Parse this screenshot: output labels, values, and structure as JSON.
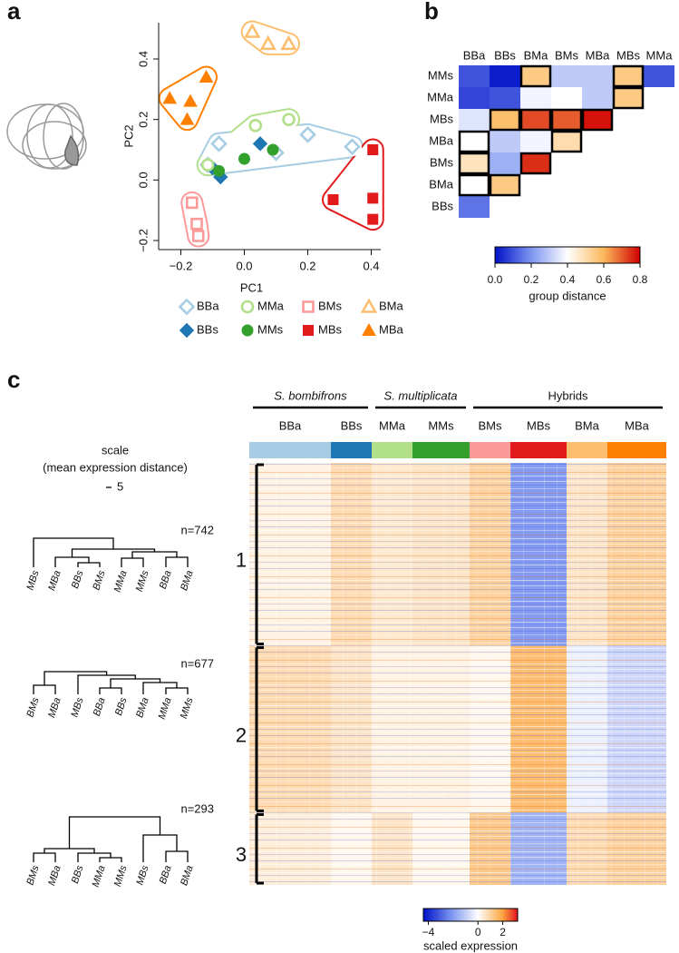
{
  "panel_labels": [
    "a",
    "b",
    "c"
  ],
  "chart_data": [
    {
      "type": "scatter",
      "xlabel": "PC1",
      "ylabel": "PC2",
      "xlim": [
        -0.27,
        0.43
      ],
      "ylim": [
        -0.23,
        0.52
      ],
      "xticks": [
        {
          "value": -0.2,
          "label": "−0.2"
        },
        {
          "value": 0,
          "label": "0.0"
        },
        0.2,
        0.4
      ],
      "yticks": [
        {
          "value": -0.2,
          "label": "−0.2"
        },
        {
          "value": 0,
          "label": "0.0"
        },
        0.2,
        0.4
      ],
      "series": [
        {
          "name": "BBa",
          "color": "#a6cde3",
          "marker": "diamond",
          "filled": false,
          "x": [
            -0.08,
            0.1,
            0.2,
            0.34,
            -0.115
          ],
          "y": [
            0.12,
            0.09,
            0.15,
            0.11,
            0.05
          ]
        },
        {
          "name": "BBs",
          "color": "#1f78b4",
          "marker": "diamond",
          "filled": true,
          "x": [
            0.05,
            -0.075,
            -0.1
          ],
          "y": [
            0.12,
            0.01,
            0.04
          ]
        },
        {
          "name": "MMa",
          "color": "#b2df8a",
          "marker": "circle",
          "filled": false,
          "x": [
            0.035,
            0.14,
            -0.115
          ],
          "y": [
            0.18,
            0.2,
            0.05
          ]
        },
        {
          "name": "MMs",
          "color": "#33a02c",
          "marker": "circle",
          "filled": true,
          "x": [
            0,
            0.09,
            -0.08
          ],
          "y": [
            0.07,
            0.1,
            0.03
          ]
        },
        {
          "name": "BMs",
          "color": "#fb9a99",
          "marker": "square",
          "filled": false,
          "x": [
            -0.165,
            -0.15,
            -0.145
          ],
          "y": [
            -0.075,
            -0.145,
            -0.185
          ]
        },
        {
          "name": "MBs",
          "color": "#e31a1c",
          "marker": "square",
          "filled": true,
          "x": [
            0.28,
            0.405,
            0.405,
            0.405
          ],
          "y": [
            -0.065,
            0.1,
            -0.06,
            -0.13
          ]
        },
        {
          "name": "BMa",
          "color": "#fdbf6f",
          "marker": "triangle",
          "filled": false,
          "x": [
            0.025,
            0.075,
            0.14
          ],
          "y": [
            0.49,
            0.45,
            0.45
          ]
        },
        {
          "name": "MBa",
          "color": "#ff7f00",
          "marker": "triangle",
          "filled": true,
          "x": [
            -0.235,
            -0.17,
            -0.12,
            -0.18
          ],
          "y": [
            0.27,
            0.26,
            0.34,
            0.2
          ]
        }
      ]
    },
    {
      "type": "heatmap",
      "columns": [
        "BBa",
        "BBs",
        "BMa",
        "BMs",
        "MBa",
        "MBs",
        "MMa"
      ],
      "rows": [
        "MMs",
        "MMa",
        "MBs",
        "MBa",
        "BMs",
        "BMa",
        "BBs"
      ],
      "values": [
        [
          0.1,
          0.02,
          0.55,
          0.3,
          0.3,
          0.55,
          0.1
        ],
        [
          0.08,
          0.1,
          0.38,
          0.4,
          0.3,
          0.55
        ],
        [
          0.35,
          0.58,
          0.72,
          0.7,
          0.78
        ],
        [
          0.4,
          0.3,
          0.38,
          0.5
        ],
        [
          0.48,
          0.25,
          0.75
        ],
        [
          0.4,
          0.55
        ],
        [
          0.15
        ]
      ],
      "boxed": [
        [
          0,
          2
        ],
        [
          0,
          5
        ],
        [
          1,
          5
        ],
        [
          2,
          1
        ],
        [
          2,
          2
        ],
        [
          2,
          3
        ],
        [
          2,
          4
        ],
        [
          3,
          0
        ],
        [
          3,
          3
        ],
        [
          4,
          0
        ],
        [
          4,
          2
        ],
        [
          5,
          0
        ],
        [
          5,
          1
        ]
      ],
      "colorbar": {
        "lim": [
          0,
          0.8
        ],
        "ticks": [
          {
            "value": 0,
            "label": "0.0"
          },
          0.2,
          0.4,
          0.6,
          0.8
        ],
        "label": "group distance"
      }
    },
    {
      "type": "heatmap",
      "species": [
        "S. bombifrons",
        "S. multiplicata",
        "Hybrids"
      ],
      "groups": [
        {
          "name": "BBa",
          "color": "#a6cde3"
        },
        {
          "name": "BBs",
          "color": "#1f78b4"
        },
        {
          "name": "MMa",
          "color": "#b2df8a"
        },
        {
          "name": "MMs",
          "color": "#33a02c"
        },
        {
          "name": "BMs",
          "color": "#fb9a99"
        },
        {
          "name": "MBs",
          "color": "#e31a1c"
        },
        {
          "name": "BMa",
          "color": "#fdbf6f"
        },
        {
          "name": "MBa",
          "color": "#ff7f00"
        }
      ],
      "clusters": [
        {
          "label": "1",
          "n": 742,
          "n_label": "n=742",
          "leaves": [
            "MBs",
            "MBa",
            "BBs",
            "BMs",
            "MMa",
            "MMs",
            "BBa",
            "BMa"
          ],
          "values": [
            0.3,
            0.8,
            0.5,
            0.6,
            1.0,
            -2.0,
            0.6,
            1.0
          ]
        },
        {
          "label": "2",
          "n": 677,
          "n_label": "n=677",
          "leaves": [
            "BMs",
            "MBa",
            "MBs",
            "BBa",
            "BBs",
            "BMa",
            "MMa",
            "MMs"
          ],
          "values": [
            0.8,
            0.6,
            0.3,
            0.3,
            0.2,
            1.5,
            -0.3,
            -0.8
          ]
        },
        {
          "label": "3",
          "n": 293,
          "n_label": "n=293",
          "leaves": [
            "BMs",
            "MBa",
            "BBs",
            "MMa",
            "MMs",
            "MBs",
            "BBa",
            "BMa"
          ],
          "values": [
            0.4,
            0.2,
            0.6,
            0.2,
            1.2,
            -1.5,
            0.8,
            1.0
          ]
        }
      ],
      "scale": {
        "title": "scale",
        "subtitle": "(mean expression distance)",
        "value": 5
      },
      "colorbar": {
        "lim": [
          -4.4,
          3.2
        ],
        "ticks": [
          {
            "value": -4,
            "label": "−4"
          },
          0,
          2
        ],
        "label": "scaled expression"
      }
    }
  ]
}
